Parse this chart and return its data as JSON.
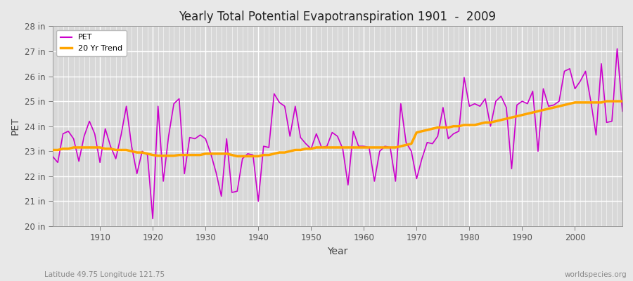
{
  "title": "Yearly Total Potential Evapotranspiration 1901  -  2009",
  "xlabel": "Year",
  "ylabel": "PET",
  "subtitle_left": "Latitude 49.75 Longitude 121.75",
  "subtitle_right": "worldspecies.org",
  "background_color": "#e8e8e8",
  "plot_bg_color": "#d8d8d8",
  "pet_color": "#cc00cc",
  "trend_color": "#ffa500",
  "ylim": [
    20,
    28
  ],
  "xlim": [
    1901,
    2009
  ],
  "ytick_labels": [
    "20 in",
    "21 in",
    "22 in",
    "23 in",
    "24 in",
    "25 in",
    "26 in",
    "27 in",
    "28 in"
  ],
  "ytick_values": [
    20,
    21,
    22,
    23,
    24,
    25,
    26,
    27,
    28
  ],
  "xtick_values": [
    1910,
    1920,
    1930,
    1940,
    1950,
    1960,
    1970,
    1980,
    1990,
    2000
  ],
  "years": [
    1901,
    1902,
    1903,
    1904,
    1905,
    1906,
    1907,
    1908,
    1909,
    1910,
    1911,
    1912,
    1913,
    1914,
    1915,
    1916,
    1917,
    1918,
    1919,
    1920,
    1921,
    1922,
    1923,
    1924,
    1925,
    1926,
    1927,
    1928,
    1929,
    1930,
    1931,
    1932,
    1933,
    1934,
    1935,
    1936,
    1937,
    1938,
    1939,
    1940,
    1941,
    1942,
    1943,
    1944,
    1945,
    1946,
    1947,
    1948,
    1949,
    1950,
    1951,
    1952,
    1953,
    1954,
    1955,
    1956,
    1957,
    1958,
    1959,
    1960,
    1961,
    1962,
    1963,
    1964,
    1965,
    1966,
    1967,
    1968,
    1969,
    1970,
    1971,
    1972,
    1973,
    1974,
    1975,
    1976,
    1977,
    1978,
    1979,
    1980,
    1981,
    1982,
    1983,
    1984,
    1985,
    1986,
    1987,
    1988,
    1989,
    1990,
    1991,
    1992,
    1993,
    1994,
    1995,
    1996,
    1997,
    1998,
    1999,
    2000,
    2001,
    2002,
    2003,
    2004,
    2005,
    2006,
    2007,
    2008,
    2009
  ],
  "pet_values": [
    22.8,
    22.55,
    23.7,
    23.8,
    23.5,
    22.6,
    23.6,
    24.2,
    23.7,
    22.55,
    23.9,
    23.2,
    22.7,
    23.65,
    24.8,
    23.2,
    22.1,
    23.0,
    22.85,
    20.3,
    24.8,
    21.8,
    23.6,
    24.9,
    25.1,
    22.1,
    23.55,
    23.5,
    23.65,
    23.5,
    22.9,
    22.15,
    21.2,
    23.5,
    21.35,
    21.4,
    22.7,
    22.9,
    22.85,
    21.0,
    23.2,
    23.15,
    25.3,
    24.95,
    24.8,
    23.6,
    24.8,
    23.55,
    23.3,
    23.1,
    23.7,
    23.15,
    23.2,
    23.75,
    23.6,
    23.1,
    21.65,
    23.8,
    23.2,
    23.2,
    23.15,
    21.8,
    23.0,
    23.2,
    23.15,
    21.8,
    24.9,
    23.35,
    23.0,
    21.9,
    22.7,
    23.35,
    23.3,
    23.6,
    24.75,
    23.5,
    23.7,
    23.8,
    25.95,
    24.8,
    24.9,
    24.8,
    25.1,
    24.0,
    25.0,
    25.2,
    24.75,
    22.3,
    24.85,
    25.0,
    24.9,
    25.4,
    23.0,
    25.5,
    24.8,
    24.85,
    25.0,
    26.2,
    26.3,
    25.5,
    25.8,
    26.2,
    25.0,
    23.65,
    26.5,
    24.15,
    24.2,
    27.1,
    24.6
  ],
  "trend_values": [
    23.05,
    23.05,
    23.1,
    23.1,
    23.15,
    23.15,
    23.15,
    23.15,
    23.15,
    23.15,
    23.1,
    23.1,
    23.05,
    23.05,
    23.05,
    23.0,
    22.95,
    22.95,
    22.9,
    22.85,
    22.82,
    22.82,
    22.82,
    22.82,
    22.85,
    22.85,
    22.85,
    22.85,
    22.85,
    22.9,
    22.9,
    22.9,
    22.9,
    22.9,
    22.85,
    22.8,
    22.8,
    22.8,
    22.8,
    22.8,
    22.85,
    22.85,
    22.9,
    22.95,
    22.95,
    23.0,
    23.05,
    23.05,
    23.1,
    23.1,
    23.15,
    23.15,
    23.15,
    23.15,
    23.15,
    23.15,
    23.15,
    23.15,
    23.15,
    23.15,
    23.15,
    23.15,
    23.15,
    23.15,
    23.15,
    23.15,
    23.2,
    23.25,
    23.3,
    23.75,
    23.8,
    23.85,
    23.9,
    23.95,
    23.95,
    23.95,
    24.0,
    24.0,
    24.05,
    24.05,
    24.05,
    24.1,
    24.15,
    24.15,
    24.2,
    24.25,
    24.3,
    24.35,
    24.4,
    24.45,
    24.5,
    24.55,
    24.6,
    24.65,
    24.7,
    24.75,
    24.8,
    24.85,
    24.9,
    24.95,
    24.95,
    24.95,
    24.95,
    24.95,
    24.95,
    25.0,
    25.0,
    25.0,
    25.0
  ]
}
